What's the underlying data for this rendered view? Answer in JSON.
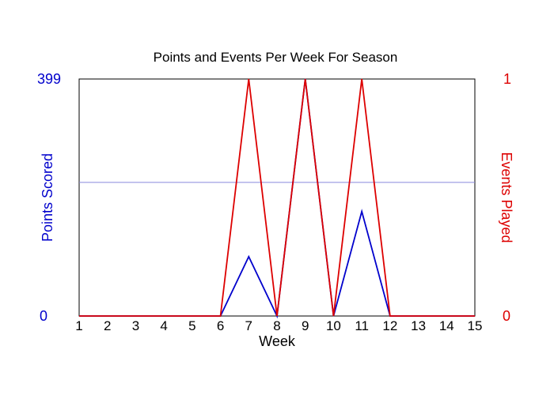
{
  "chart_data": {
    "type": "line",
    "title": "Points and Events Per Week For Season",
    "xlabel": "Week",
    "ylabel_left": "Points Scored",
    "ylabel_right": "Events Played",
    "x": [
      1,
      2,
      3,
      4,
      5,
      6,
      7,
      8,
      9,
      10,
      11,
      12,
      13,
      14,
      15
    ],
    "x_tick_labels": [
      "1",
      "2",
      "3",
      "4",
      "5",
      "6",
      "7",
      "8",
      "9",
      "10",
      "11",
      "12",
      "13",
      "14",
      "15"
    ],
    "ylim_left": [
      0,
      399
    ],
    "ylim_right": [
      0,
      1
    ],
    "y_left_ticks": [
      "0",
      "399"
    ],
    "y_right_ticks": [
      "0",
      "1"
    ],
    "reference_line_left": 225,
    "series": [
      {
        "axis": "left",
        "color": "#0000cc",
        "values": [
          0,
          0,
          0,
          0,
          0,
          0,
          100,
          0,
          399,
          0,
          176,
          0,
          0,
          0,
          0
        ]
      },
      {
        "axis": "right",
        "color": "#dd0000",
        "values": [
          0,
          0,
          0,
          0,
          0,
          0,
          1,
          0,
          1,
          0,
          1,
          0,
          0,
          0,
          0
        ]
      }
    ],
    "colors": {
      "left_axis": "#0000cc",
      "right_axis": "#dd0000",
      "reference_line": "#8888dd"
    },
    "grid": false
  }
}
